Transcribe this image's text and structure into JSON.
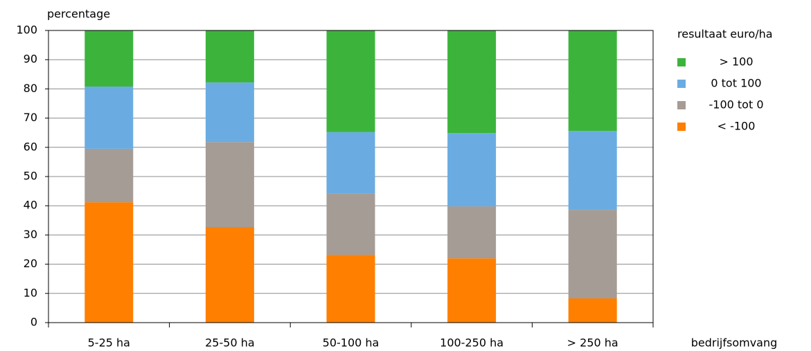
{
  "chart_data": {
    "type": "stacked-bar",
    "y_label": "percentage",
    "x_label": "bedrijfsomvang",
    "legend_title": "resultaat euro/ha",
    "categories": [
      "5-25 ha",
      "25-50 ha",
      "50-100 ha",
      "100-250 ha",
      "> 250 ha"
    ],
    "series": [
      {
        "name": "< -100",
        "color": "#ff7f00",
        "values": [
          41.2,
          32.7,
          23.2,
          22.0,
          8.3
        ]
      },
      {
        "name": "-100 tot 0",
        "color": "#a59c95",
        "values": [
          18.3,
          29.1,
          20.9,
          17.8,
          30.3
        ]
      },
      {
        "name": "0 tot 100",
        "color": "#6aace2",
        "values": [
          21.3,
          20.4,
          21.1,
          25.1,
          27.0
        ]
      },
      {
        "name": "> 100",
        "color": "#3cb43c",
        "values": [
          19.2,
          17.8,
          34.8,
          35.1,
          34.4
        ]
      }
    ],
    "ylim": [
      0,
      100
    ],
    "yticks": [
      0,
      10,
      20,
      30,
      40,
      50,
      60,
      70,
      80,
      90,
      100
    ],
    "grid": true,
    "legend": "right"
  }
}
